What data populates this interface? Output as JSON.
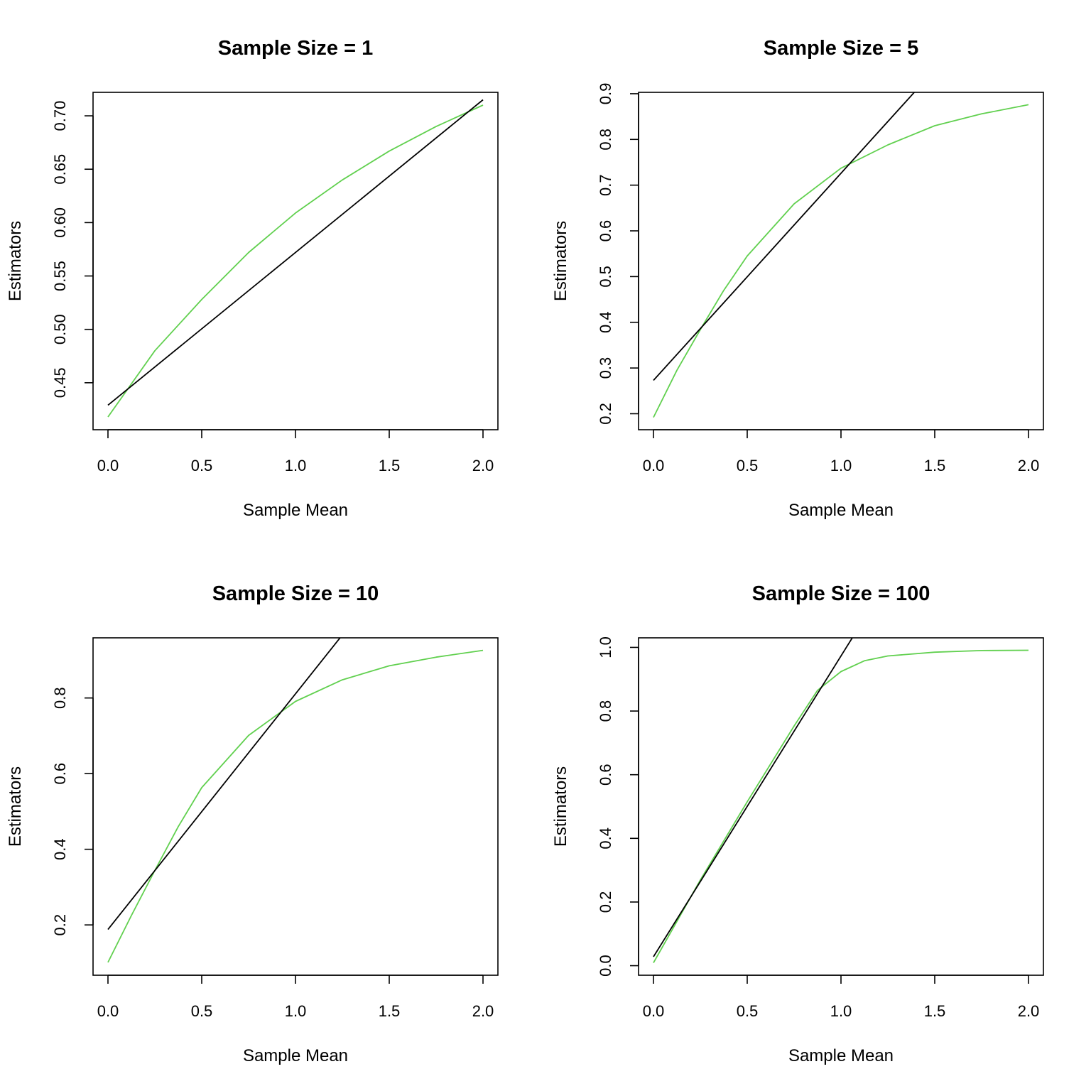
{
  "colors": {
    "green": "#61D04F",
    "black": "#000000"
  },
  "chart_data": [
    {
      "type": "line",
      "title": "Sample Size = 1",
      "xlabel": "Sample Mean",
      "ylabel": "Estimators",
      "xlim": [
        0,
        2
      ],
      "ylim": [
        0.406,
        0.722
      ],
      "xticks": [
        "0.0",
        "0.5",
        "1.0",
        "1.5",
        "2.0"
      ],
      "yticks": [
        "0.45",
        "0.50",
        "0.55",
        "0.60",
        "0.65",
        "0.70"
      ],
      "series": [
        {
          "name": "green curve",
          "color": "#61D04F",
          "x": [
            0,
            0.25,
            0.5,
            0.75,
            1.0,
            1.25,
            1.5,
            1.75,
            2.0
          ],
          "y": [
            0.418,
            0.48,
            0.528,
            0.572,
            0.609,
            0.64,
            0.667,
            0.69,
            0.71
          ]
        },
        {
          "name": "black line",
          "color": "#000000",
          "x": [
            0,
            2
          ],
          "y": [
            0.429,
            0.715
          ]
        }
      ]
    },
    {
      "type": "line",
      "title": "Sample Size = 5",
      "xlabel": "Sample Mean",
      "ylabel": "Estimators",
      "xlim": [
        0,
        2
      ],
      "ylim": [
        0.165,
        0.903
      ],
      "xticks": [
        "0.0",
        "0.5",
        "1.0",
        "1.5",
        "2.0"
      ],
      "yticks": [
        "0.2",
        "0.3",
        "0.4",
        "0.5",
        "0.6",
        "0.7",
        "0.8",
        "0.9"
      ],
      "series": [
        {
          "name": "green curve",
          "color": "#61D04F",
          "x": [
            0,
            0.125,
            0.25,
            0.375,
            0.5,
            0.75,
            1.0,
            1.25,
            1.5,
            1.75,
            2.0
          ],
          "y": [
            0.192,
            0.295,
            0.384,
            0.47,
            0.545,
            0.659,
            0.737,
            0.788,
            0.83,
            0.856,
            0.876
          ]
        },
        {
          "name": "black line",
          "color": "#000000",
          "x": [
            0,
            2
          ],
          "y": [
            0.273,
            1.179
          ]
        }
      ]
    },
    {
      "type": "line",
      "title": "Sample Size = 10",
      "xlabel": "Sample Mean",
      "ylabel": "Estimators",
      "xlim": [
        0,
        2
      ],
      "ylim": [
        0.067,
        0.959
      ],
      "xticks": [
        "0.0",
        "0.5",
        "1.0",
        "1.5",
        "2.0"
      ],
      "yticks": [
        "0.2",
        "0.4",
        "0.6",
        "0.8"
      ],
      "series": [
        {
          "name": "green curve",
          "color": "#61D04F",
          "x": [
            0,
            0.125,
            0.25,
            0.375,
            0.5,
            0.75,
            1.0,
            1.25,
            1.5,
            1.75,
            2.0
          ],
          "y": [
            0.101,
            0.225,
            0.344,
            0.46,
            0.563,
            0.701,
            0.791,
            0.848,
            0.885,
            0.908,
            0.926
          ]
        },
        {
          "name": "black line",
          "color": "#000000",
          "x": [
            0,
            2
          ],
          "y": [
            0.188,
            1.434
          ]
        }
      ]
    },
    {
      "type": "line",
      "title": "Sample Size = 100",
      "xlabel": "Sample Mean",
      "ylabel": "Estimators",
      "xlim": [
        0,
        2
      ],
      "ylim": [
        -0.03,
        1.03
      ],
      "xticks": [
        "0.0",
        "0.5",
        "1.0",
        "1.5",
        "2.0"
      ],
      "yticks": [
        "0.0",
        "0.2",
        "0.4",
        "0.6",
        "0.8",
        "1.0"
      ],
      "series": [
        {
          "name": "green curve",
          "color": "#61D04F",
          "x": [
            0,
            0.25,
            0.5,
            0.75,
            0.875,
            1.0,
            1.125,
            1.25,
            1.5,
            1.75,
            2.0
          ],
          "y": [
            0.009,
            0.269,
            0.515,
            0.753,
            0.865,
            0.924,
            0.958,
            0.973,
            0.985,
            0.99,
            0.991
          ]
        },
        {
          "name": "black line",
          "color": "#000000",
          "x": [
            0,
            2
          ],
          "y": [
            0.028,
            1.918
          ]
        }
      ]
    }
  ]
}
